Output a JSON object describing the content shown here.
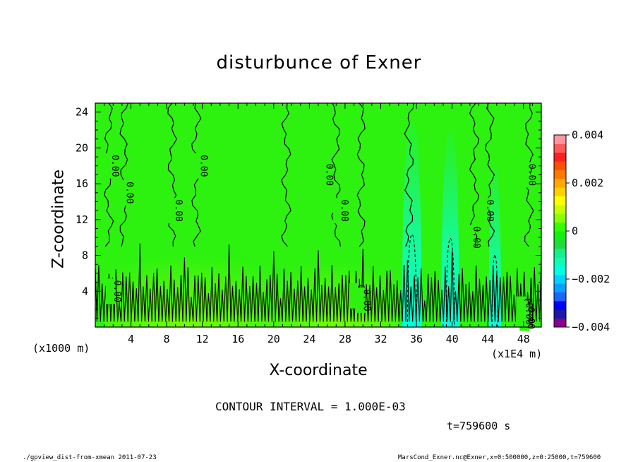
{
  "chart_data": {
    "type": "heatmap",
    "title": "disturbunce of Exner",
    "xlabel": "X-coordinate",
    "ylabel": "Z-coordinate",
    "x_unit_left": "(x1000 m)",
    "x_unit_right": "(x1E4 m)",
    "xlim": [
      0,
      50
    ],
    "ylim": [
      0,
      25
    ],
    "x_ticks": [
      4,
      8,
      12,
      16,
      20,
      24,
      28,
      32,
      36,
      40,
      44,
      48
    ],
    "y_ticks": [
      4,
      8,
      12,
      16,
      20,
      24
    ],
    "x_tick_labels": [
      "4",
      "8",
      "12",
      "16",
      "20",
      "24",
      "28",
      "32",
      "36",
      "40",
      "44",
      "48"
    ],
    "y_tick_labels": [
      "4",
      "8",
      "12",
      "16",
      "20",
      "24"
    ],
    "colorbar": {
      "min": -0.004,
      "max": 0.004,
      "tick_labels": [
        "0.004",
        "0.002",
        "0",
        "−0.002",
        "−0.004"
      ],
      "tick_values": [
        0.004,
        0.002,
        0,
        -0.002,
        -0.004
      ],
      "colors": [
        "#8b008b",
        "#1a1aa6",
        "#0000ff",
        "#1e64ff",
        "#0aa0ff",
        "#00d2ff",
        "#00ffe6",
        "#14fab4",
        "#14f08c",
        "#1edc3c",
        "#14f014",
        "#32ff00",
        "#8cff00",
        "#c8ff00",
        "#ffff00",
        "#ffd200",
        "#ffaa00",
        "#ff7800",
        "#ff5000",
        "#ff1e1e",
        "#ff5a5a",
        "#ff96a0"
      ]
    },
    "field_background_color": "#2df20f",
    "contour_labels": [
      "0.00",
      "0.00",
      "0.00",
      "0.00",
      "0.00",
      "0.00",
      "0.00",
      "0.00",
      "0.00",
      "0.00",
      "0.00",
      "0.00",
      "0.00",
      "0.00",
      "0.00"
    ],
    "positive_zones": [
      {
        "x": [
          1,
          20
        ],
        "z": [
          0,
          10
        ],
        "value": 0.0006
      },
      {
        "x": [
          20,
          34
        ],
        "z": [
          0,
          9
        ],
        "value": 0.0005
      }
    ],
    "negative_plumes": [
      {
        "x": 35.5,
        "z_top": 23,
        "width": 2.2,
        "value": -0.0008
      },
      {
        "x": 39.8,
        "z_top": 22,
        "width": 2.0,
        "value": -0.0012
      },
      {
        "x": 44.8,
        "z_top": 18,
        "width": 1.4,
        "value": -0.0008
      }
    ]
  },
  "contour_interval_text": "CONTOUR INTERVAL = 1.000E-03",
  "time_text": "t=759600 s",
  "footer": {
    "left": "./gpview_dist-from-xmean  2011-07-23",
    "right": "MarsCond_Exner.nc@Exner,x=0:500000,z=0:25000,t=759600"
  }
}
